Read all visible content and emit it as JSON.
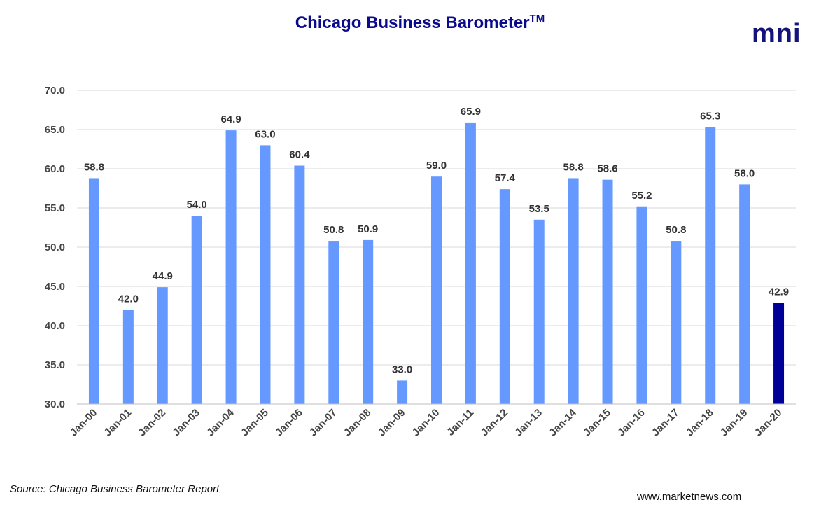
{
  "chart_data": {
    "type": "bar",
    "title": "Chicago Business Barometer",
    "title_mark": "TM",
    "categories": [
      "Jan-00",
      "Jan-01",
      "Jan-02",
      "Jan-03",
      "Jan-04",
      "Jan-05",
      "Jan-06",
      "Jan-07",
      "Jan-08",
      "Jan-09",
      "Jan-10",
      "Jan-11",
      "Jan-12",
      "Jan-13",
      "Jan-14",
      "Jan-15",
      "Jan-16",
      "Jan-17",
      "Jan-18",
      "Jan-19",
      "Jan-20"
    ],
    "values": [
      58.8,
      42.0,
      44.9,
      54.0,
      64.9,
      63.0,
      60.4,
      50.8,
      50.9,
      33.0,
      59.0,
      65.9,
      57.4,
      53.5,
      58.8,
      58.6,
      55.2,
      50.8,
      65.3,
      58.0,
      42.9
    ],
    "ylim": [
      30.0,
      70.0
    ],
    "yticks": [
      30.0,
      35.0,
      40.0,
      45.0,
      50.0,
      55.0,
      60.0,
      65.0,
      70.0
    ],
    "xlabel": "",
    "ylabel": "",
    "grid": true,
    "highlight_category": "Jan-20",
    "colors": {
      "bar": "#6699ff",
      "highlight": "#000099",
      "grid": "#d9d9d9",
      "title": "#0a0a8c"
    }
  },
  "logo_text": "mni",
  "source_note": "Source: Chicago Business Barometer Report",
  "website": "www.marketnews.com"
}
